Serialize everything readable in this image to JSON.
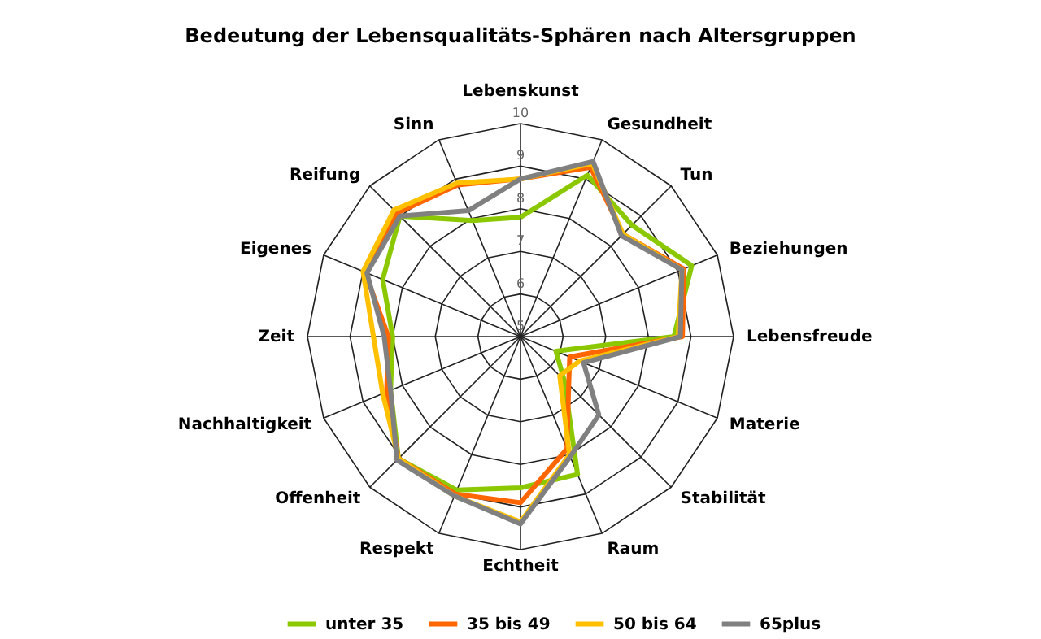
{
  "chart_data": {
    "type": "radar",
    "title": "Bedeutung der Lebensqualitäts-Sphären nach Altersgruppen",
    "categories": [
      "Lebenskunst",
      "Gesundheit",
      "Tun",
      "Beziehungen",
      "Lebensfreude",
      "Materie",
      "Stabilität",
      "Raum",
      "Echtheit",
      "Respekt",
      "Offenheit",
      "Nachhaltigkeit",
      "Zeit",
      "Eigenes",
      "Reifung",
      "Sinn"
    ],
    "series": [
      {
        "name": "unter 35",
        "color": "#8cc800",
        "values": [
          7.8,
          9.1,
          8.7,
          9.35,
          8.6,
          5.9,
          6.45,
          8.5,
          8.55,
          8.9,
          9.05,
          8.3,
          8.0,
          8.5,
          9.0,
          7.95
        ]
      },
      {
        "name": "35 bis 49",
        "color": "#ff6600",
        "values": [
          8.7,
          9.3,
          8.4,
          9.15,
          8.8,
          6.25,
          6.6,
          7.85,
          8.9,
          9.0,
          9.05,
          8.4,
          8.1,
          8.95,
          9.1,
          8.85
        ]
      },
      {
        "name": "50 bis 64",
        "color": "#ffc000",
        "values": [
          8.7,
          9.4,
          8.4,
          9.1,
          8.7,
          6.5,
          6.3,
          8.0,
          9.35,
          9.05,
          9.05,
          8.5,
          8.45,
          9.0,
          9.2,
          8.9
        ]
      },
      {
        "name": "65plus",
        "color": "#808080",
        "values": [
          8.7,
          9.45,
          8.35,
          9.1,
          8.75,
          6.6,
          7.6,
          8.05,
          9.4,
          9.05,
          9.1,
          8.3,
          8.2,
          8.9,
          9.0,
          8.2
        ]
      }
    ],
    "ylim": [
      5,
      10
    ],
    "yticks": [
      5,
      6,
      7,
      8,
      9,
      10
    ],
    "grid": true,
    "legend": "bottom"
  }
}
